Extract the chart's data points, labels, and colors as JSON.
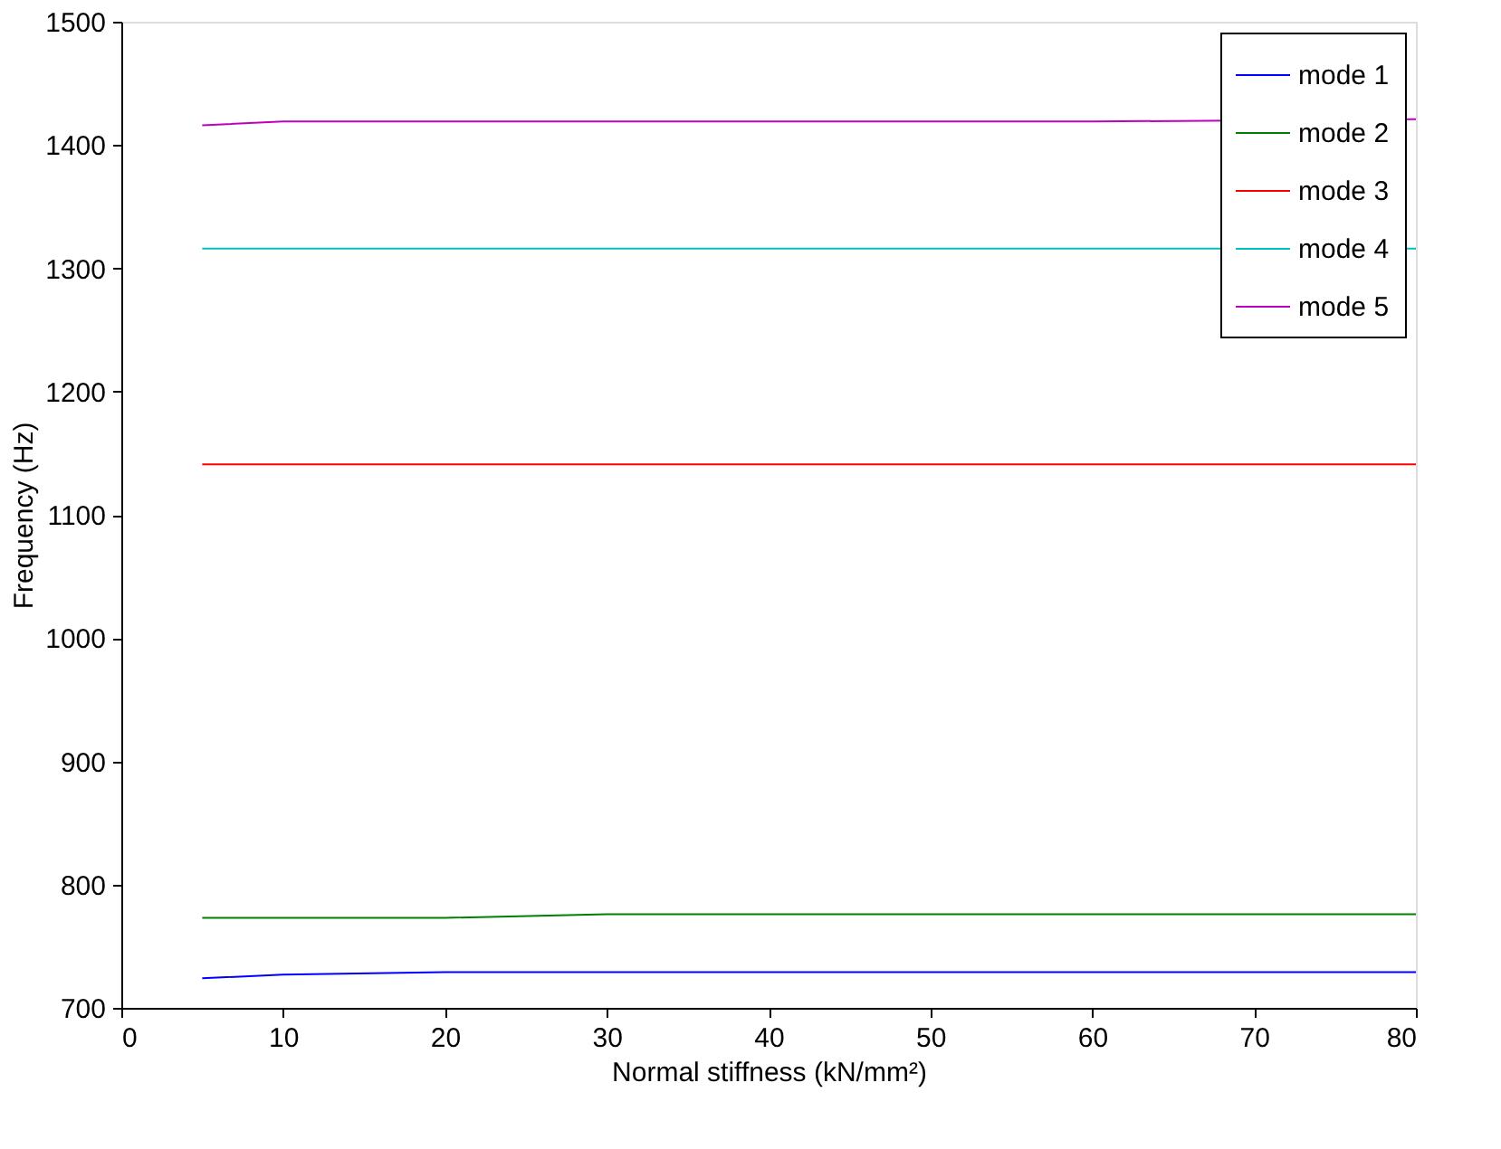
{
  "chart_data": {
    "type": "line",
    "xlabel": "Normal stiffness (kN/mm²)",
    "ylabel": "Frequency (Hz)",
    "x": [
      5,
      10,
      20,
      30,
      40,
      50,
      60,
      70,
      80
    ],
    "series": [
      {
        "name": "mode 1",
        "color": "#0000ff",
        "values": [
          724,
          727,
          729,
          729,
          729,
          729,
          729,
          729,
          729
        ]
      },
      {
        "name": "mode 2",
        "color": "#008000",
        "values": [
          773,
          773,
          773,
          776,
          776,
          776,
          776,
          776,
          776
        ]
      },
      {
        "name": "mode 3",
        "color": "#ff0000",
        "values": [
          1141,
          1141,
          1141,
          1141,
          1141,
          1141,
          1141,
          1141,
          1141
        ]
      },
      {
        "name": "mode 4",
        "color": "#00bfbf",
        "x": [
          5,
          10,
          20,
          30,
          40,
          50,
          60,
          80
        ],
        "values": [
          1316,
          1316,
          1316,
          1316,
          1316,
          1316,
          1316,
          1316
        ]
      },
      {
        "name": "mode 5",
        "color": "#bf00bf",
        "x": [
          5,
          10,
          20,
          30,
          40,
          50,
          60,
          80
        ],
        "values": [
          1416,
          1419,
          1419,
          1419,
          1419,
          1419,
          1419,
          1421
        ]
      }
    ],
    "xlim": [
      0,
      80
    ],
    "xticks": [
      0,
      10,
      20,
      30,
      40,
      50,
      60,
      70,
      80
    ],
    "ylim": [
      700,
      1500
    ],
    "yticks": [
      700,
      800,
      900,
      1000,
      1100,
      1200,
      1300,
      1400,
      1500
    ],
    "grid": false,
    "legend": "top right",
    "line_style": "solid",
    "marker": "none"
  }
}
